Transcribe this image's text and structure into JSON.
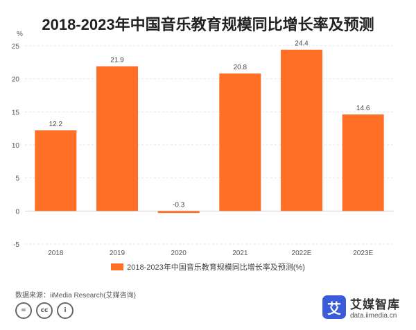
{
  "title": "2018-2023年中国音乐教育规模同比增长率及预测",
  "unit_label": "%",
  "legend_label": "2018-2023年中国音乐教育规模同比增长率及预测(%)",
  "source": "数据来源：iiMedia Research(艾媒咨询)",
  "brand": {
    "name": "艾媒智库",
    "url": "data.iimedia.cn",
    "logo_char": "艾"
  },
  "license_icons": [
    "equal-icon",
    "cc-icon",
    "person-icon"
  ],
  "license_glyphs": [
    "=",
    "cc",
    "i"
  ],
  "colors": {
    "bar": "#FF6F26",
    "grid": "#E5E5E5",
    "brand": "#3B5BDB"
  },
  "chart_data": {
    "type": "bar",
    "categories": [
      "2018",
      "2019",
      "2020",
      "2021",
      "2022E",
      "2023E"
    ],
    "values": [
      12.2,
      21.9,
      -0.3,
      20.8,
      24.4,
      14.6
    ],
    "labels": [
      "12.2",
      "21.9",
      "-0.3",
      "20.8",
      "24.4",
      "14.6"
    ],
    "yticks": [
      -5,
      0,
      5,
      10,
      15,
      20,
      25
    ],
    "ylim": [
      -5,
      25
    ],
    "grid": true,
    "legend_position": "bottom",
    "ylabel": "%",
    "xlabel": ""
  }
}
